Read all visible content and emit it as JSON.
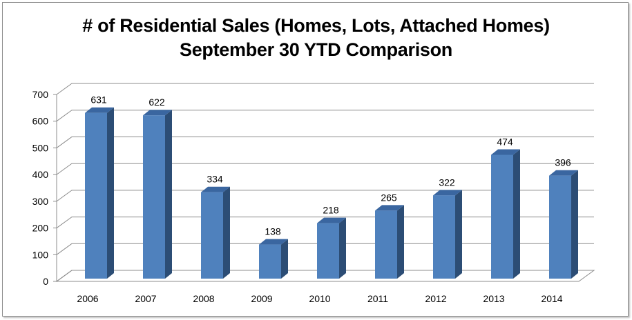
{
  "chart_data": {
    "type": "bar",
    "title": "# of Residential Sales (Homes, Lots, Attached Homes)",
    "subtitle": "September 30 YTD Comparison",
    "categories": [
      "2006",
      "2007",
      "2008",
      "2009",
      "2010",
      "2011",
      "2012",
      "2013",
      "2014"
    ],
    "values": [
      631,
      622,
      334,
      138,
      218,
      265,
      322,
      474,
      396
    ],
    "ylim": [
      0,
      700
    ],
    "yticks": [
      0,
      100,
      200,
      300,
      400,
      500,
      600,
      700
    ],
    "grid": true,
    "legend": "none",
    "bar_color": "#4f81bd",
    "bar_side_color": "#2c4d75",
    "bar_top_color": "#3a66a0",
    "grid_color": "#8c8c8c"
  }
}
